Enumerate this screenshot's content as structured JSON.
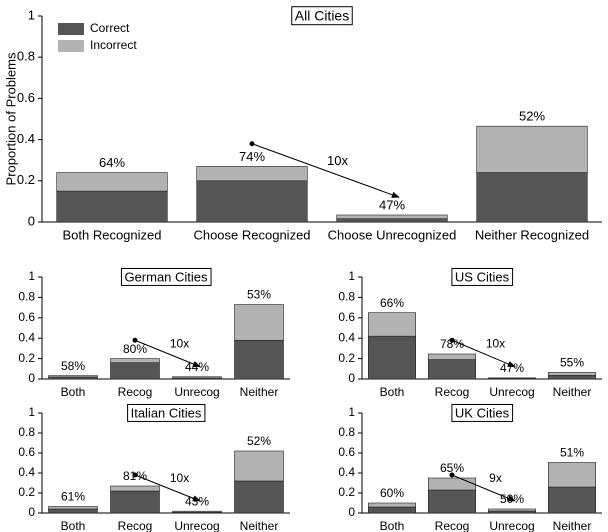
{
  "chart_data": [
    {
      "type": "bar",
      "title": "All Cities",
      "ylabel": "Proportion of Problems",
      "legend": "upper left",
      "categories": [
        "Both Recognized",
        "Choose Recognized",
        "Choose Unrecognized",
        "Neither Recognized"
      ],
      "series": [
        {
          "name": "Correct",
          "color": "#555555",
          "values": [
            0.15,
            0.2,
            0.016,
            0.24
          ]
        },
        {
          "name": "Incorrect",
          "color": "#b3b3b3",
          "values": [
            0.09,
            0.07,
            0.018,
            0.225
          ]
        }
      ],
      "bar_labels": [
        "64%",
        "74%",
        "47%",
        "52%"
      ],
      "arrow_label": "10x",
      "ylim": [
        0,
        1
      ],
      "yticks": [
        0,
        0.2,
        0.4,
        0.6,
        0.8,
        1
      ]
    },
    {
      "type": "bar",
      "title": "German Cities",
      "categories": [
        "Both",
        "Recog",
        "Unrecog",
        "Neither"
      ],
      "series": [
        {
          "color": "#555555",
          "values": [
            0.02,
            0.16,
            0.01,
            0.38
          ]
        },
        {
          "color": "#b3b3b3",
          "values": [
            0.013,
            0.04,
            0.012,
            0.35
          ]
        }
      ],
      "bar_labels": [
        "58%",
        "80%",
        "44%",
        "53%"
      ],
      "arrow_label": "10x",
      "ylim": [
        0,
        1
      ],
      "yticks": [
        0,
        0.2,
        0.4,
        0.6,
        0.8,
        1
      ]
    },
    {
      "type": "bar",
      "title": "US Cities",
      "categories": [
        "Both",
        "Recog",
        "Unrecog",
        "Neither"
      ],
      "series": [
        {
          "color": "#555555",
          "values": [
            0.42,
            0.19,
            0.005,
            0.035
          ]
        },
        {
          "color": "#b3b3b3",
          "values": [
            0.23,
            0.055,
            0.006,
            0.03
          ]
        }
      ],
      "bar_labels": [
        "66%",
        "78%",
        "47%",
        "55%"
      ],
      "arrow_label": "10x",
      "ylim": [
        0,
        1
      ],
      "yticks": [
        0,
        0.2,
        0.4,
        0.6,
        0.8,
        1
      ]
    },
    {
      "type": "bar",
      "title": "Italian Cities",
      "categories": [
        "Both",
        "Recog",
        "Unrecog",
        "Neither"
      ],
      "series": [
        {
          "color": "#555555",
          "values": [
            0.04,
            0.22,
            0.008,
            0.32
          ]
        },
        {
          "color": "#b3b3b3",
          "values": [
            0.025,
            0.05,
            0.01,
            0.3
          ]
        }
      ],
      "bar_labels": [
        "61%",
        "81%",
        "43%",
        "52%"
      ],
      "arrow_label": "10x",
      "ylim": [
        0,
        1
      ],
      "yticks": [
        0,
        0.2,
        0.4,
        0.6,
        0.8,
        1
      ]
    },
    {
      "type": "bar",
      "title": "UK Cities",
      "categories": [
        "Both",
        "Recog",
        "Unrecog",
        "Neither"
      ],
      "series": [
        {
          "color": "#555555",
          "values": [
            0.06,
            0.23,
            0.02,
            0.26
          ]
        },
        {
          "color": "#b3b3b3",
          "values": [
            0.04,
            0.12,
            0.02,
            0.245
          ]
        }
      ],
      "bar_labels": [
        "60%",
        "65%",
        "50%",
        "51%"
      ],
      "arrow_label": "9x",
      "ylim": [
        0,
        1
      ],
      "yticks": [
        0,
        0.2,
        0.4,
        0.6,
        0.8,
        1
      ]
    }
  ]
}
